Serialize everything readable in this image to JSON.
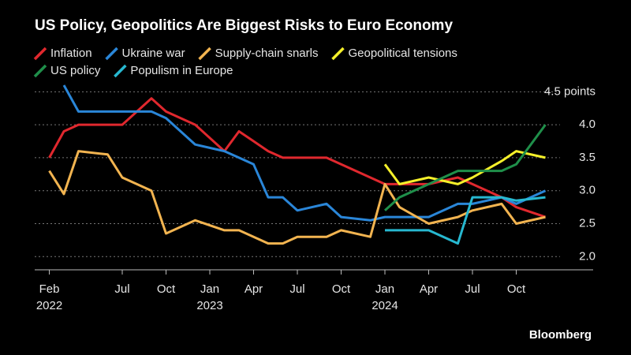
{
  "chart_data": {
    "type": "line",
    "title": "US Policy, Geopolitics Are Biggest Risks to Euro Economy",
    "source": "Bloomberg",
    "x": [
      "2022-02",
      "2022-03",
      "2022-04",
      "2022-06",
      "2022-07",
      "2022-09",
      "2022-10",
      "2022-12",
      "2023-02",
      "2023-03",
      "2023-04",
      "2023-05",
      "2023-06",
      "2023-07",
      "2023-09",
      "2023-10",
      "2023-12",
      "2024-01",
      "2024-02",
      "2024-04",
      "2024-06",
      "2024-07",
      "2024-09",
      "2024-10",
      "2024-12"
    ],
    "series": [
      {
        "name": "Inflation",
        "color": "#e0282e",
        "values": [
          3.5,
          3.9,
          4.0,
          4.0,
          4.0,
          4.4,
          4.2,
          4.0,
          3.6,
          3.9,
          3.75,
          3.6,
          3.5,
          3.5,
          3.5,
          3.4,
          3.2,
          3.1,
          3.1,
          3.1,
          3.2,
          3.1,
          2.9,
          2.75,
          2.6
        ]
      },
      {
        "name": "Ukraine war",
        "color": "#2a86d8",
        "values": [
          null,
          4.6,
          4.2,
          4.2,
          4.2,
          4.2,
          4.1,
          3.7,
          3.6,
          3.5,
          3.4,
          2.9,
          2.9,
          2.7,
          2.8,
          2.6,
          2.55,
          2.6,
          2.6,
          2.6,
          2.8,
          2.8,
          2.9,
          2.8,
          3.0
        ]
      },
      {
        "name": "Supply-chain snarls",
        "color": "#f2b450",
        "values": [
          3.3,
          2.95,
          3.6,
          3.55,
          3.2,
          3.0,
          2.35,
          2.55,
          2.4,
          2.4,
          2.3,
          2.2,
          2.2,
          2.3,
          2.3,
          2.4,
          2.3,
          3.1,
          2.75,
          2.5,
          2.6,
          2.7,
          2.8,
          2.5,
          2.6
        ]
      },
      {
        "name": "Geopolitical tensions",
        "color": "#f5f02a",
        "values": [
          null,
          null,
          null,
          null,
          null,
          null,
          null,
          null,
          null,
          null,
          null,
          null,
          null,
          null,
          null,
          null,
          null,
          3.4,
          3.1,
          3.2,
          3.1,
          3.2,
          3.45,
          3.6,
          3.5
        ]
      },
      {
        "name": "US policy",
        "color": "#1f8f4a",
        "values": [
          null,
          null,
          null,
          null,
          null,
          null,
          null,
          null,
          null,
          null,
          null,
          null,
          null,
          null,
          null,
          null,
          null,
          2.7,
          2.9,
          3.1,
          3.3,
          3.3,
          3.3,
          3.4,
          4.0
        ]
      },
      {
        "name": "Populism in Europe",
        "color": "#27b8d0",
        "values": [
          null,
          null,
          null,
          null,
          null,
          null,
          null,
          null,
          null,
          null,
          null,
          null,
          null,
          null,
          null,
          null,
          null,
          2.4,
          2.4,
          2.4,
          2.2,
          2.9,
          2.9,
          2.85,
          2.9
        ]
      }
    ],
    "xlim": [
      "2022-01",
      "2025-03"
    ],
    "xticks": [
      {
        "value": "2022-02",
        "label": "Feb",
        "sublabel": "2022"
      },
      {
        "value": "2022-07",
        "label": "Jul"
      },
      {
        "value": "2022-10",
        "label": "Oct"
      },
      {
        "value": "2023-01",
        "label": "Jan",
        "sublabel": "2023"
      },
      {
        "value": "2023-04",
        "label": "Apr"
      },
      {
        "value": "2023-07",
        "label": "Jul"
      },
      {
        "value": "2023-10",
        "label": "Oct"
      },
      {
        "value": "2024-01",
        "label": "Jan",
        "sublabel": "2024"
      },
      {
        "value": "2024-04",
        "label": "Apr"
      },
      {
        "value": "2024-07",
        "label": "Jul"
      },
      {
        "value": "2024-10",
        "label": "Oct"
      }
    ],
    "ylim": [
      1.8,
      4.6
    ],
    "yticks": [
      {
        "value": 2,
        "label": "2.0"
      },
      {
        "value": 2.5,
        "label": "2.5"
      },
      {
        "value": 3,
        "label": "3.0"
      },
      {
        "value": 3.5,
        "label": "3.5"
      },
      {
        "value": 4,
        "label": "4.0"
      },
      {
        "value": 4.5,
        "label": "4.5 points"
      }
    ],
    "grid": true
  }
}
